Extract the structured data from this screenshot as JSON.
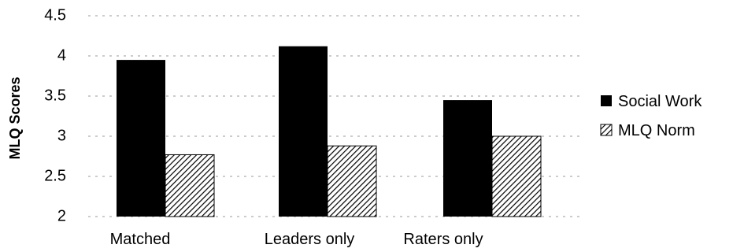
{
  "chart_data": {
    "type": "bar",
    "ylabel": "MLQ Scores",
    "xlabel": "",
    "title": "",
    "categories": [
      "Matched",
      "Leaders only",
      "Raters only"
    ],
    "ylim": [
      2,
      4.5
    ],
    "yticks": [
      "2",
      "2.5",
      "3",
      "3.5",
      "4",
      "4.5"
    ],
    "grid": true,
    "legend_position": "right",
    "series": [
      {
        "name": "Social Work",
        "values": [
          3.95,
          4.12,
          3.45
        ],
        "fill": "solid",
        "color": "#000000"
      },
      {
        "name": "MLQ Norm",
        "values": [
          2.77,
          2.88,
          3.0
        ],
        "fill": "hatched",
        "color": "#000000"
      }
    ]
  }
}
